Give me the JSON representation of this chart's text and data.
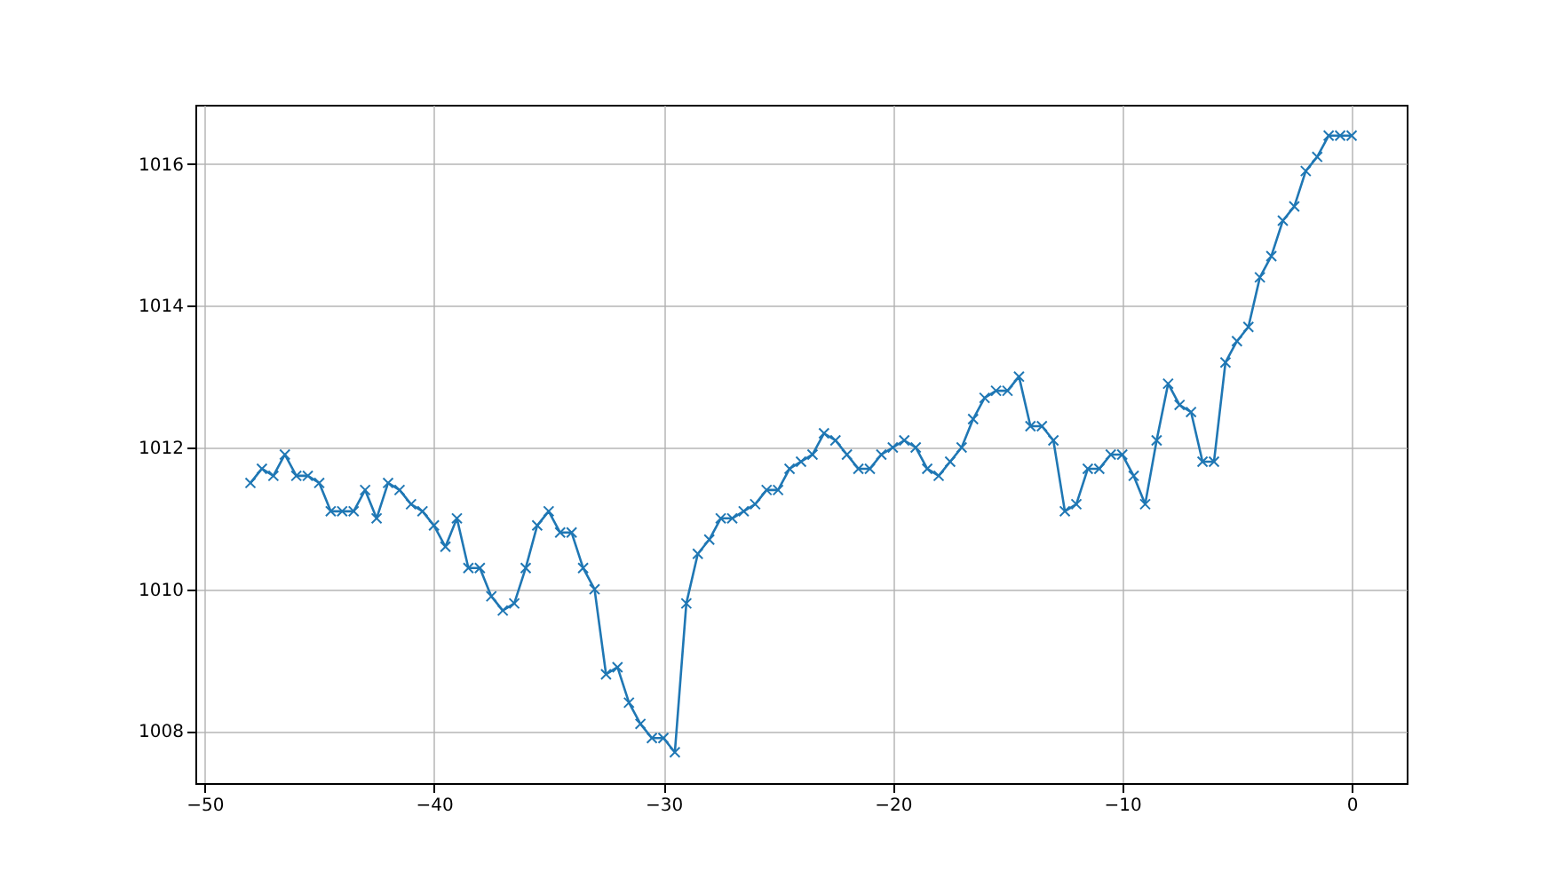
{
  "chart_data": {
    "type": "line",
    "x": [
      -48,
      -47.5,
      -47,
      -46.5,
      -46,
      -45.5,
      -45,
      -44.5,
      -44,
      -43.5,
      -43,
      -42.5,
      -42,
      -41.5,
      -41,
      -40.5,
      -40,
      -39.5,
      -39,
      -38.5,
      -38,
      -37.5,
      -37,
      -36.5,
      -36,
      -35.5,
      -35,
      -34.5,
      -34,
      -33.5,
      -33,
      -32.5,
      -32,
      -31.5,
      -31,
      -30.5,
      -30,
      -29.5,
      -29,
      -28.5,
      -28,
      -27.5,
      -27,
      -26.5,
      -26,
      -25.5,
      -25,
      -24.5,
      -24,
      -23.5,
      -23,
      -22.5,
      -22,
      -21.5,
      -21,
      -20.5,
      -20,
      -19.5,
      -19,
      -18.5,
      -18,
      -17.5,
      -17,
      -16.5,
      -16,
      -15.5,
      -15,
      -14.5,
      -14,
      -13.5,
      -13,
      -12.5,
      -12,
      -11.5,
      -11,
      -10.5,
      -10,
      -9.5,
      -9,
      -8.5,
      -8,
      -7.5,
      -7,
      -6.5,
      -6,
      -5.5,
      -5,
      -4.5,
      -4,
      -3.5,
      -3,
      -2.5,
      -2,
      -1.5,
      -1,
      -0.5,
      0
    ],
    "series": [
      {
        "color": "#1f77b4",
        "values": [
          1011.5,
          1011.7,
          1011.6,
          1011.9,
          1011.6,
          1011.6,
          1011.5,
          1011.1,
          1011.1,
          1011.1,
          1011.4,
          1011.0,
          1011.5,
          1011.4,
          1011.2,
          1011.1,
          1010.9,
          1010.6,
          1011.0,
          1010.3,
          1010.3,
          1009.9,
          1009.7,
          1009.8,
          1010.3,
          1010.9,
          1011.1,
          1010.8,
          1010.8,
          1010.3,
          1010.0,
          1008.8,
          1008.9,
          1008.4,
          1008.1,
          1007.9,
          1007.9,
          1007.7,
          1009.8,
          1010.5,
          1010.7,
          1011.0,
          1011.0,
          1011.1,
          1011.2,
          1011.4,
          1011.4,
          1011.7,
          1011.8,
          1011.9,
          1012.2,
          1012.1,
          1011.9,
          1011.7,
          1011.7,
          1011.9,
          1012.0,
          1012.1,
          1012.0,
          1011.7,
          1011.6,
          1011.8,
          1012.0,
          1012.4,
          1012.7,
          1012.8,
          1012.8,
          1013.0,
          1012.3,
          1012.3,
          1012.1,
          1011.1,
          1011.2,
          1011.7,
          1011.7,
          1011.9,
          1011.9,
          1011.6,
          1011.2,
          1012.1,
          1012.9,
          1012.6,
          1012.5,
          1011.8,
          1011.8,
          1013.2,
          1013.5,
          1013.7,
          1014.4,
          1014.7,
          1015.2,
          1015.4,
          1015.9,
          1016.1,
          1016.4,
          1016.4,
          1016.4
        ]
      }
    ],
    "xlim": [
      -50.4,
      2.4
    ],
    "ylim": [
      1007.265,
      1016.835
    ],
    "xticks": [
      -50,
      -40,
      -30,
      -20,
      -10,
      0
    ],
    "yticks": [
      1008,
      1010,
      1012,
      1014,
      1016
    ],
    "grid": true,
    "marker": "cross",
    "line_style": "solid"
  }
}
